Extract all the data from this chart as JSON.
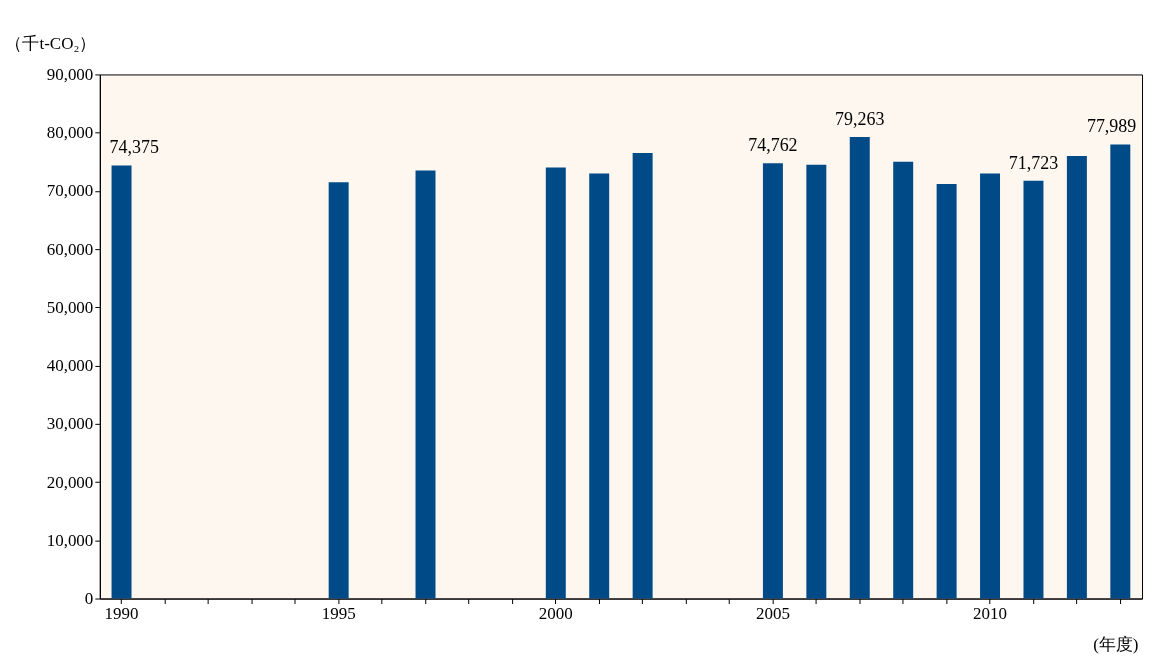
{
  "chart_data": {
    "type": "bar",
    "ylabel": "（千t-CO₂）",
    "xlabel": "(年度)",
    "categories": [
      "1990",
      null,
      null,
      null,
      null,
      "1995",
      null,
      null,
      null,
      null,
      "2000",
      null,
      null,
      null,
      null,
      "2005",
      null,
      null,
      null,
      null,
      "2010",
      null,
      null,
      null
    ],
    "values": [
      74375,
      null,
      null,
      null,
      null,
      71500,
      null,
      73500,
      null,
      null,
      74000,
      73000,
      76500,
      null,
      null,
      74762,
      74500,
      79263,
      75000,
      71200,
      73000,
      71723,
      76000,
      77989
    ],
    "value_labels": [
      "74,375",
      null,
      null,
      null,
      null,
      null,
      null,
      null,
      null,
      null,
      null,
      null,
      null,
      null,
      null,
      "74,762",
      null,
      "79,263",
      null,
      null,
      null,
      "71,723",
      null,
      "77,989"
    ],
    "color": "#004a87",
    "ylim": [
      0,
      90000
    ],
    "yticks": [
      0,
      {
        "value": 10000,
        "label": "10,000"
      },
      {
        "value": 20000,
        "label": "20,000"
      },
      {
        "value": 30000,
        "label": "30,000"
      },
      {
        "value": 40000,
        "label": "40,000"
      },
      {
        "value": 50000,
        "label": "50,000"
      },
      {
        "value": 60000,
        "label": "60,000"
      },
      {
        "value": 70000,
        "label": "70,000"
      },
      {
        "value": 80000,
        "label": "80,000"
      },
      {
        "value": 90000,
        "label": "90,000"
      }
    ],
    "grid": false
  }
}
